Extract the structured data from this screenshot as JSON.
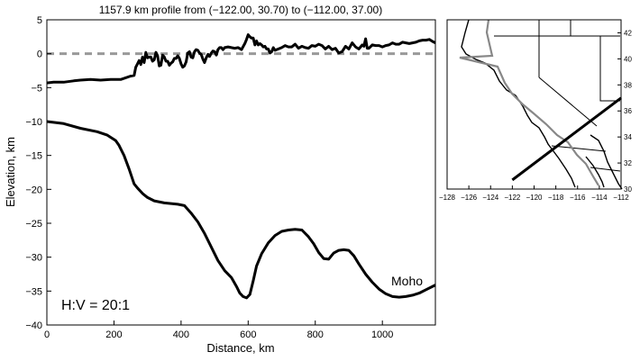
{
  "chart_data": [
    {
      "type": "line",
      "title": "1157.9 km profile from (−122.00, 30.70) to (−112.00, 37.00)",
      "xlabel": "Distance, km",
      "ylabel": "Elevation, km",
      "xlim": [
        0,
        1158
      ],
      "ylim": [
        -40,
        5
      ],
      "x_ticks": [
        0,
        200,
        400,
        600,
        800,
        1000
      ],
      "y_ticks": [
        5,
        0,
        -5,
        -10,
        -15,
        -20,
        -25,
        -30,
        -35,
        -40
      ],
      "reference_line": {
        "y": 0,
        "style": "dashed",
        "color": "#999999"
      },
      "annotation": "H:V = 20:1",
      "series": [
        {
          "name": "",
          "values": [
            [
              0,
              -4.3
            ],
            [
              20,
              -4.2
            ],
            [
              50,
              -4.2
            ],
            [
              80,
              -4
            ],
            [
              100,
              -3.9
            ],
            [
              130,
              -3.8
            ],
            [
              160,
              -3.9
            ],
            [
              190,
              -3.8
            ],
            [
              220,
              -3.8
            ],
            [
              250,
              -3.3
            ],
            [
              260,
              -3.2
            ],
            [
              265,
              -2
            ],
            [
              270,
              -1.5
            ],
            [
              275,
              -1
            ],
            [
              280,
              -1.6
            ],
            [
              285,
              -0.5
            ],
            [
              290,
              -1.3
            ],
            [
              295,
              0.2
            ],
            [
              300,
              -0.6
            ],
            [
              305,
              -0.5
            ],
            [
              310,
              -0.5
            ],
            [
              315,
              -1.1
            ],
            [
              320,
              -0.9
            ],
            [
              325,
              0.2
            ],
            [
              330,
              -0.3
            ],
            [
              335,
              -1.8
            ],
            [
              340,
              -1.7
            ],
            [
              345,
              -0.2
            ],
            [
              350,
              -0.5
            ],
            [
              355,
              -1.1
            ],
            [
              360,
              -1.1
            ],
            [
              365,
              -1.7
            ],
            [
              370,
              -1.4
            ],
            [
              375,
              -1.2
            ],
            [
              380,
              -0.7
            ],
            [
              385,
              -0.7
            ],
            [
              390,
              -0.3
            ],
            [
              395,
              -0.7
            ],
            [
              400,
              -1.5
            ],
            [
              405,
              -2
            ],
            [
              410,
              -1.8
            ],
            [
              415,
              -1.2
            ],
            [
              420,
              0.1
            ],
            [
              425,
              0.3
            ],
            [
              430,
              -0.5
            ],
            [
              435,
              -0.6
            ],
            [
              440,
              0.3
            ],
            [
              445,
              0.6
            ],
            [
              450,
              0.5
            ],
            [
              455,
              0.1
            ],
            [
              460,
              -0.1
            ],
            [
              465,
              -0.8
            ],
            [
              470,
              -1.3
            ],
            [
              475,
              -0.6
            ],
            [
              480,
              -0.1
            ],
            [
              485,
              -0.4
            ],
            [
              490,
              0.1
            ],
            [
              495,
              0.4
            ],
            [
              500,
              0.3
            ],
            [
              505,
              -0.2
            ],
            [
              510,
              0.6
            ],
            [
              515,
              0.9
            ],
            [
              520,
              0.9
            ],
            [
              525,
              0.6
            ],
            [
              530,
              0.9
            ],
            [
              540,
              1
            ],
            [
              550,
              0.9
            ],
            [
              560,
              0.8
            ],
            [
              570,
              0.9
            ],
            [
              580,
              0.6
            ],
            [
              590,
              1.5
            ],
            [
              595,
              2.1
            ],
            [
              600,
              2.8
            ],
            [
              605,
              2.5
            ],
            [
              610,
              2.3
            ],
            [
              615,
              2.3
            ],
            [
              620,
              1.3
            ],
            [
              625,
              1.9
            ],
            [
              630,
              1.3
            ],
            [
              635,
              1.5
            ],
            [
              640,
              1.3
            ],
            [
              645,
              1
            ],
            [
              650,
              1.1
            ],
            [
              655,
              0.7
            ],
            [
              660,
              0.7
            ],
            [
              665,
              0.1
            ],
            [
              670,
              0.3
            ],
            [
              675,
              0.9
            ],
            [
              680,
              0.5
            ],
            [
              690,
              0.7
            ],
            [
              700,
              0.9
            ],
            [
              710,
              1.2
            ],
            [
              720,
              1
            ],
            [
              730,
              1
            ],
            [
              740,
              1.4
            ],
            [
              750,
              0.8
            ],
            [
              760,
              1.1
            ],
            [
              770,
              0.9
            ],
            [
              780,
              0.8
            ],
            [
              790,
              1.2
            ],
            [
              800,
              1.1
            ],
            [
              810,
              1.4
            ],
            [
              820,
              1.2
            ],
            [
              830,
              0.7
            ],
            [
              840,
              1.1
            ],
            [
              850,
              0.6
            ],
            [
              860,
              0.8
            ],
            [
              870,
              0.1
            ],
            [
              880,
              0.3
            ],
            [
              890,
              1.1
            ],
            [
              900,
              0.7
            ],
            [
              910,
              1.6
            ],
            [
              920,
              1
            ],
            [
              930,
              0.7
            ],
            [
              940,
              1.3
            ],
            [
              945,
              1.1
            ],
            [
              950,
              2.2
            ],
            [
              955,
              0.8
            ],
            [
              960,
              0.8
            ],
            [
              970,
              1.3
            ],
            [
              980,
              1.2
            ],
            [
              990,
              1.2
            ],
            [
              1000,
              1
            ],
            [
              1010,
              1.2
            ],
            [
              1020,
              1.3
            ],
            [
              1030,
              1.6
            ],
            [
              1040,
              1.4
            ],
            [
              1050,
              1.4
            ],
            [
              1060,
              1.7
            ],
            [
              1070,
              1.6
            ],
            [
              1080,
              1.5
            ],
            [
              1090,
              1.6
            ],
            [
              1100,
              1.7
            ],
            [
              1110,
              1.9
            ],
            [
              1120,
              2
            ],
            [
              1130,
              2
            ],
            [
              1140,
              2.1
            ],
            [
              1150,
              1.8
            ],
            [
              1158,
              1.6
            ]
          ]
        },
        {
          "name": "Moho",
          "values": [
            [
              0,
              -10
            ],
            [
              50,
              -10.3
            ],
            [
              100,
              -11
            ],
            [
              150,
              -11.5
            ],
            [
              180,
              -12
            ],
            [
              205,
              -12.8
            ],
            [
              215,
              -13.5
            ],
            [
              230,
              -15
            ],
            [
              245,
              -17
            ],
            [
              260,
              -19.2
            ],
            [
              270,
              -19.8
            ],
            [
              285,
              -20.6
            ],
            [
              300,
              -21.2
            ],
            [
              320,
              -21.7
            ],
            [
              350,
              -22
            ],
            [
              390,
              -22.2
            ],
            [
              410,
              -22.4
            ],
            [
              430,
              -23.5
            ],
            [
              450,
              -24.8
            ],
            [
              470,
              -26.5
            ],
            [
              490,
              -28.5
            ],
            [
              510,
              -30.5
            ],
            [
              530,
              -32
            ],
            [
              550,
              -33
            ],
            [
              565,
              -34.3
            ],
            [
              575,
              -35.3
            ],
            [
              585,
              -35.8
            ],
            [
              595,
              -36
            ],
            [
              605,
              -35.5
            ],
            [
              615,
              -33.5
            ],
            [
              625,
              -31.3
            ],
            [
              640,
              -29.5
            ],
            [
              660,
              -27.9
            ],
            [
              680,
              -26.8
            ],
            [
              700,
              -26.2
            ],
            [
              720,
              -26
            ],
            [
              740,
              -25.9
            ],
            [
              760,
              -26
            ],
            [
              780,
              -27
            ],
            [
              795,
              -28
            ],
            [
              810,
              -29.3
            ],
            [
              825,
              -30.2
            ],
            [
              840,
              -30.3
            ],
            [
              855,
              -29.4
            ],
            [
              870,
              -29
            ],
            [
              885,
              -28.9
            ],
            [
              900,
              -29
            ],
            [
              915,
              -29.8
            ],
            [
              930,
              -31
            ],
            [
              950,
              -32.5
            ],
            [
              970,
              -33.7
            ],
            [
              990,
              -34.7
            ],
            [
              1010,
              -35.4
            ],
            [
              1030,
              -35.8
            ],
            [
              1050,
              -35.9
            ],
            [
              1070,
              -35.8
            ],
            [
              1090,
              -35.6
            ],
            [
              1110,
              -35.3
            ],
            [
              1130,
              -34.8
            ],
            [
              1150,
              -34.3
            ],
            [
              1158,
              -34.1
            ]
          ]
        }
      ]
    },
    {
      "type": "map",
      "xlim": [
        -128,
        -112
      ],
      "ylim": [
        30,
        43
      ],
      "x_ticks": [
        -128,
        -126,
        -124,
        -122,
        -120,
        -118,
        -116,
        -114,
        -112
      ],
      "y_ticks": [
        30,
        32,
        34,
        36,
        38,
        40,
        42
      ],
      "profile_line": {
        "from": [
          -122.0,
          30.7
        ],
        "to": [
          -112.0,
          37.0
        ]
      },
      "colors": {
        "boundary": "#000000",
        "plate_boundary": "#888888",
        "profile": "#000000"
      }
    }
  ]
}
